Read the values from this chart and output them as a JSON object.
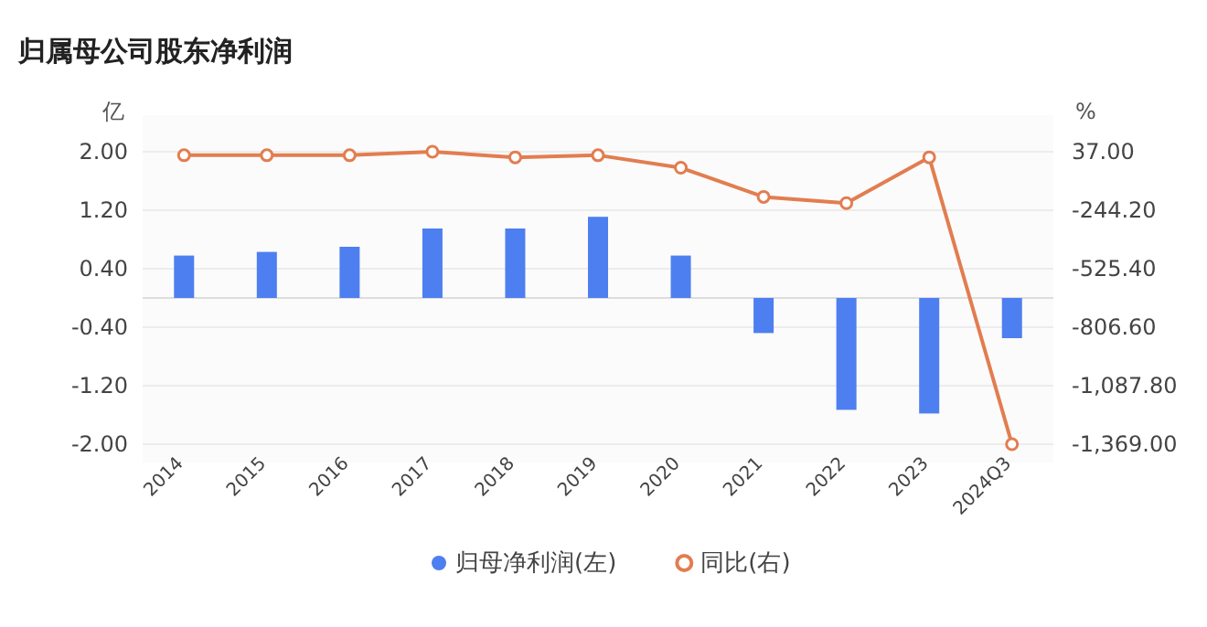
{
  "chart_data": {
    "type": "bar",
    "title": "归属母公司股东净利润",
    "ylabel": "亿",
    "y2label": "%",
    "categories": [
      "2014",
      "2015",
      "2016",
      "2017",
      "2018",
      "2019",
      "2020",
      "2021",
      "2022",
      "2023",
      "2024Q3"
    ],
    "series": [
      {
        "name": "归母净利润(左)",
        "color": "#4e7ff0",
        "values": [
          0.58,
          0.63,
          0.7,
          0.95,
          0.95,
          1.11,
          0.58,
          -0.48,
          -1.53,
          -1.58,
          -0.55
        ]
      },
      {
        "name": "同比(右)",
        "type": "line",
        "axis": "y2",
        "marker": "circle",
        "color": "#e27d50",
        "values": [
          20,
          20,
          20,
          37,
          10,
          20,
          -40,
          -180,
          -210,
          10,
          -1369
        ]
      }
    ],
    "ylim": [
      -2,
      2
    ],
    "yticks": [
      {
        "value": -2,
        "label": "-2.00"
      },
      {
        "value": -1.2,
        "label": "-1.20"
      },
      {
        "value": -0.4,
        "label": "-0.40"
      },
      {
        "value": 0.4,
        "label": "0.40"
      },
      {
        "value": 1.2,
        "label": "1.20"
      },
      {
        "value": 2,
        "label": "2.00"
      }
    ],
    "y2lim": [
      -1369,
      37
    ],
    "y2ticks": [
      {
        "value": -1369,
        "label": "-1,369.00"
      },
      {
        "value": -1087.8,
        "label": "-1,087.80"
      },
      {
        "value": -806.6,
        "label": "-806.60"
      },
      {
        "value": -525.4,
        "label": "-525.40"
      },
      {
        "value": -244.2,
        "label": "-244.20"
      },
      {
        "value": 37,
        "label": "37.00"
      }
    ],
    "grid": "y",
    "legend": "bottom"
  }
}
